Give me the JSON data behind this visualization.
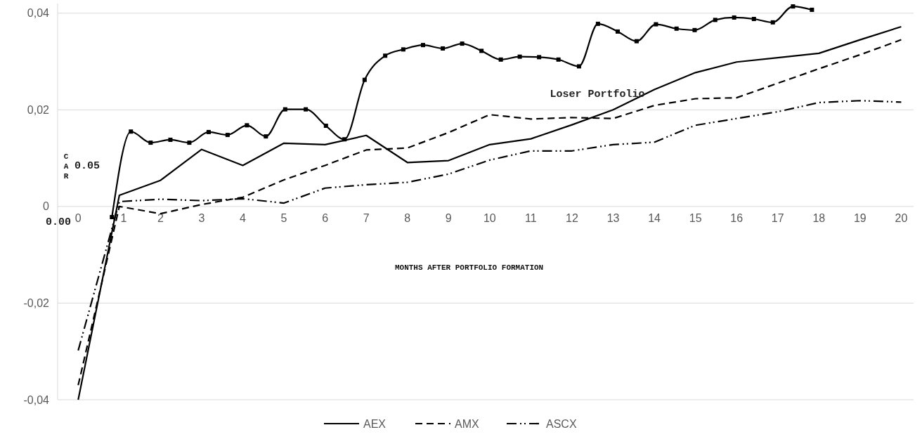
{
  "chart_data": {
    "type": "line",
    "xlabel": "MONTHS AFTER PORTFOLIO FORMATION",
    "ylabel": "CAR",
    "xlim": [
      -0.5,
      20.3
    ],
    "xticks": [
      0,
      1,
      2,
      3,
      4,
      5,
      6,
      7,
      8,
      9,
      10,
      11,
      12,
      13,
      14,
      15,
      16,
      17,
      18,
      19,
      20
    ],
    "ylim": [
      -0.04,
      0.042
    ],
    "yticks": [
      {
        "value": -0.04,
        "label": "-0,04"
      },
      {
        "value": -0.02,
        "label": "-0,02"
      },
      0,
      {
        "value": 0.02,
        "label": "0,02"
      },
      {
        "value": 0.04,
        "label": "0,04"
      }
    ],
    "grid": "y",
    "legend": "bottom",
    "series": [
      {
        "name": "AEX",
        "color": "#000000",
        "line_style": "solid",
        "marker": "none",
        "x": [
          0,
          1,
          2,
          3,
          4,
          5,
          6,
          7,
          8,
          9,
          10,
          11,
          12,
          13,
          14,
          15,
          16,
          17,
          18,
          19,
          20
        ],
        "values": [
          -0.04,
          0.0023,
          0.0054,
          0.0118,
          0.0085,
          0.0131,
          0.0128,
          0.0147,
          0.0091,
          0.0095,
          0.0128,
          0.014,
          0.0169,
          0.02,
          0.0242,
          0.0277,
          0.0299,
          0.0308,
          0.0317,
          0.0345,
          0.0372
        ]
      },
      {
        "name": "AMX",
        "color": "#000000",
        "line_style": "dashed",
        "marker": "none",
        "x": [
          0,
          1,
          2,
          3,
          4,
          5,
          6,
          7,
          8,
          9,
          10,
          11,
          12,
          13,
          14,
          15,
          16,
          17,
          18,
          19,
          20
        ],
        "values": [
          -0.037,
          0.0,
          -0.0015,
          0.0004,
          0.0019,
          0.0055,
          0.0085,
          0.0117,
          0.0121,
          0.0153,
          0.019,
          0.0181,
          0.0184,
          0.0182,
          0.0209,
          0.0223,
          0.0225,
          0.0255,
          0.0285,
          0.0314,
          0.0345
        ]
      },
      {
        "name": "ASCX",
        "color": "#000000",
        "line_style": "dashdot",
        "marker": "none",
        "x": [
          0,
          1,
          2,
          3,
          4,
          5,
          6,
          7,
          8,
          9,
          10,
          11,
          12,
          13,
          14,
          15,
          16,
          17,
          18,
          19,
          20
        ],
        "values": [
          -0.0298,
          0.001,
          0.0015,
          0.0012,
          0.0016,
          0.0007,
          0.0038,
          0.0045,
          0.005,
          0.0067,
          0.0096,
          0.0115,
          0.0115,
          0.0128,
          0.0133,
          0.0168,
          0.0182,
          0.0196,
          0.0215,
          0.0219,
          0.0216
        ]
      },
      {
        "color": "#000000",
        "line_style": "solid",
        "marker": "square",
        "x": [
          0.82,
          1.28,
          1.76,
          2.24,
          2.7,
          3.17,
          3.63,
          4.1,
          4.56,
          5.03,
          5.53,
          6.02,
          6.47,
          6.96,
          7.46,
          7.9,
          8.38,
          8.86,
          9.33,
          9.8,
          10.27,
          10.73,
          11.2,
          11.67,
          12.17,
          12.63,
          13.11,
          13.57,
          14.04,
          14.54,
          14.98,
          15.48,
          15.94,
          16.42,
          16.88,
          17.37,
          17.83
        ],
        "values": [
          -0.0022,
          0.0155,
          0.0132,
          0.0138,
          0.0132,
          0.0154,
          0.0148,
          0.0168,
          0.0145,
          0.0201,
          0.0201,
          0.0167,
          0.0139,
          0.0262,
          0.0312,
          0.0325,
          0.0334,
          0.0327,
          0.0337,
          0.0322,
          0.0304,
          0.031,
          0.0309,
          0.0304,
          0.029,
          0.0378,
          0.0362,
          0.0342,
          0.0377,
          0.0368,
          0.0365,
          0.0386,
          0.0391,
          0.0388,
          0.0381,
          0.0414,
          0.0407
        ]
      }
    ],
    "annotations": [
      "Loser Portfolio",
      "0.05",
      "0.00"
    ]
  }
}
